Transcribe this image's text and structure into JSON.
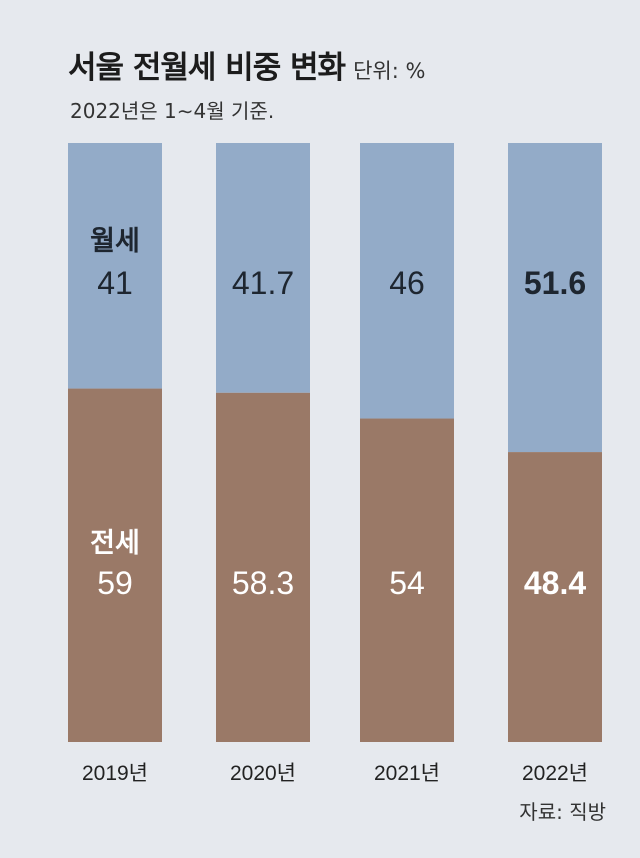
{
  "header": {
    "title": "서울 전월세 비중 변화",
    "unit": "단위: %",
    "subtitle": "2022년은 1∼4월 기준."
  },
  "source": "자료: 직방",
  "colors": {
    "wolse": "#93abc8",
    "jeonse": "#9a7967",
    "background": "#e6e9ee"
  },
  "chart_data": {
    "type": "bar",
    "stacked": true,
    "categories": [
      "2019년",
      "2020년",
      "2021년",
      "2022년"
    ],
    "series": [
      {
        "name": "월세",
        "values": [
          41,
          41.7,
          46,
          51.6
        ],
        "labels": [
          "41",
          "41.7",
          "46",
          "51.6"
        ]
      },
      {
        "name": "전세",
        "values": [
          59,
          58.3,
          54,
          48.4
        ],
        "labels": [
          "59",
          "58.3",
          "54",
          "48.4"
        ]
      }
    ],
    "ylim": [
      0,
      100
    ],
    "grid": false,
    "legend": "none"
  }
}
